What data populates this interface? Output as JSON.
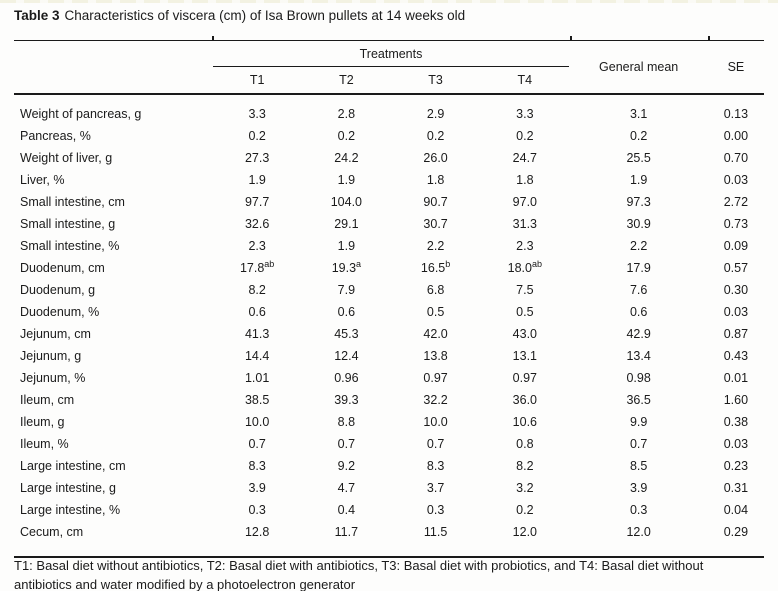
{
  "title": {
    "label": "Table 3",
    "text": "Characteristics of viscera (cm) of Isa Brown pullets at 14 weeks old"
  },
  "table": {
    "treatments_header": "Treatments",
    "treatment_cols": [
      "T1",
      "T2",
      "T3",
      "T4"
    ],
    "general_mean_header": "General mean",
    "se_header": "SE",
    "rows": [
      {
        "label": "Weight of pancreas, g",
        "values": [
          "3.3",
          "2.8",
          "2.9",
          "3.3"
        ],
        "general_mean": "3.1",
        "se": "0.13"
      },
      {
        "label": "Pancreas, %",
        "values": [
          "0.2",
          "0.2",
          "0.2",
          "0.2"
        ],
        "general_mean": "0.2",
        "se": "0.00"
      },
      {
        "label": "Weight of liver, g",
        "values": [
          "27.3",
          "24.2",
          "26.0",
          "24.7"
        ],
        "general_mean": "25.5",
        "se": "0.70"
      },
      {
        "label": "Liver, %",
        "values": [
          "1.9",
          "1.9",
          "1.8",
          "1.8"
        ],
        "general_mean": "1.9",
        "se": "0.03"
      },
      {
        "label": "Small intestine, cm",
        "values": [
          "97.7",
          "104.0",
          "90.7",
          "97.0"
        ],
        "general_mean": "97.3",
        "se": "2.72"
      },
      {
        "label": "Small intestine, g",
        "values": [
          "32.6",
          "29.1",
          "30.7",
          "31.3"
        ],
        "general_mean": "30.9",
        "se": "0.73"
      },
      {
        "label": "Small intestine, %",
        "values": [
          "2.3",
          "1.9",
          "2.2",
          "2.3"
        ],
        "general_mean": "2.2",
        "se": "0.09"
      },
      {
        "label": "Duodenum, cm",
        "values": [
          "17.8^ab",
          "19.3^a",
          "16.5^b",
          "18.0^ab"
        ],
        "general_mean": "17.9",
        "se": "0.57"
      },
      {
        "label": "Duodenum, g",
        "values": [
          "8.2",
          "7.9",
          "6.8",
          "7.5"
        ],
        "general_mean": "7.6",
        "se": "0.30"
      },
      {
        "label": "Duodenum, %",
        "values": [
          "0.6",
          "0.6",
          "0.5",
          "0.5"
        ],
        "general_mean": "0.6",
        "se": "0.03"
      },
      {
        "label": "Jejunum, cm",
        "values": [
          "41.3",
          "45.3",
          "42.0",
          "43.0"
        ],
        "general_mean": "42.9",
        "se": "0.87"
      },
      {
        "label": "Jejunum, g",
        "values": [
          "14.4",
          "12.4",
          "13.8",
          "13.1"
        ],
        "general_mean": "13.4",
        "se": "0.43"
      },
      {
        "label": "Jejunum, %",
        "values": [
          "1.01",
          "0.96",
          "0.97",
          "0.97"
        ],
        "general_mean": "0.98",
        "se": "0.01"
      },
      {
        "label": "Ileum, cm",
        "values": [
          "38.5",
          "39.3",
          "32.2",
          "36.0"
        ],
        "general_mean": "36.5",
        "se": "1.60"
      },
      {
        "label": "Ileum, g",
        "values": [
          "10.0",
          "8.8",
          "10.0",
          "10.6"
        ],
        "general_mean": "9.9",
        "se": "0.38"
      },
      {
        "label": "Ileum, %",
        "values": [
          "0.7",
          "0.7",
          "0.7",
          "0.8"
        ],
        "general_mean": "0.7",
        "se": "0.03"
      },
      {
        "label": "Large intestine, cm",
        "values": [
          "8.3",
          "9.2",
          "8.3",
          "8.2"
        ],
        "general_mean": "8.5",
        "se": "0.23"
      },
      {
        "label": "Large intestine, g",
        "values": [
          "3.9",
          "4.7",
          "3.7",
          "3.2"
        ],
        "general_mean": "3.9",
        "se": "0.31"
      },
      {
        "label": "Large intestine, %",
        "values": [
          "0.3",
          "0.4",
          "0.3",
          "0.2"
        ],
        "general_mean": "0.3",
        "se": "0.04"
      },
      {
        "label": "Cecum, cm",
        "values": [
          "12.8",
          "11.7",
          "11.5",
          "12.0"
        ],
        "general_mean": "12.0",
        "se": "0.29"
      }
    ]
  },
  "footnote": {
    "lines": [
      "T1: Basal diet without antibiotics, T2: Basal diet with antibiotics, T3: Basal diet with probiotics, and T4: Basal diet without",
      "antibiotics and water modified by a photoelectron generator"
    ]
  }
}
